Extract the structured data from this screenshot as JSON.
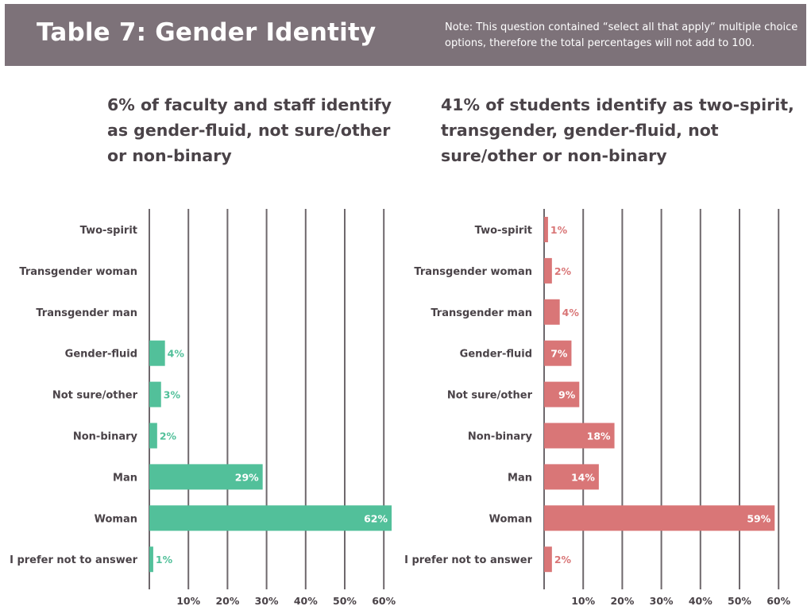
{
  "header": {
    "title": "Table 7: Gender Identity",
    "note": "Note: This question contained “select all that apply” multiple choice options, therefore the total percentages will not add to 100."
  },
  "headings": {
    "faculty": "6% of faculty and staff identify as gender-fluid, not sure/other or non-binary",
    "students": "41% of students identify as two-spirit, transgender, gender-fluid, not sure/other or non-binary"
  },
  "colors": {
    "header_bg": "#7d7279",
    "faculty_bar": "#52c09a",
    "student_bar": "#d97677",
    "grid": "#6e686c",
    "text": "#4a4348"
  },
  "chart_data": [
    {
      "type": "bar",
      "orientation": "horizontal",
      "categories": [
        "Two-spirit",
        "Transgender woman",
        "Transgender man",
        "Gender-fluid",
        "Not sure/other",
        "Non-binary",
        "Man",
        "Woman",
        "I prefer not to answer"
      ],
      "values": [
        null,
        null,
        null,
        4,
        3,
        2,
        29,
        62,
        1
      ],
      "data_labels": [
        "",
        "",
        "",
        "4%",
        "3%",
        "2%",
        "29%",
        "62%",
        "1%"
      ],
      "x_ticks": [
        "10%",
        "20%",
        "30%",
        "40%",
        "50%",
        "60%"
      ],
      "xlim": [
        0,
        65
      ],
      "grid": true
    },
    {
      "type": "bar",
      "orientation": "horizontal",
      "categories": [
        "Two-spirit",
        "Transgender woman",
        "Transgender man",
        "Gender-fluid",
        "Not sure/other",
        "Non-binary",
        "Man",
        "Woman",
        "I prefer not to answer"
      ],
      "values": [
        1,
        2,
        4,
        7,
        9,
        18,
        14,
        59,
        2
      ],
      "data_labels": [
        "1%",
        "2%",
        "4%",
        "7%",
        "9%",
        "18%",
        "14%",
        "59%",
        "2%"
      ],
      "x_ticks": [
        "10%",
        "20%",
        "30%",
        "40%",
        "50%",
        "60%"
      ],
      "xlim": [
        0,
        65
      ],
      "grid": true
    }
  ]
}
